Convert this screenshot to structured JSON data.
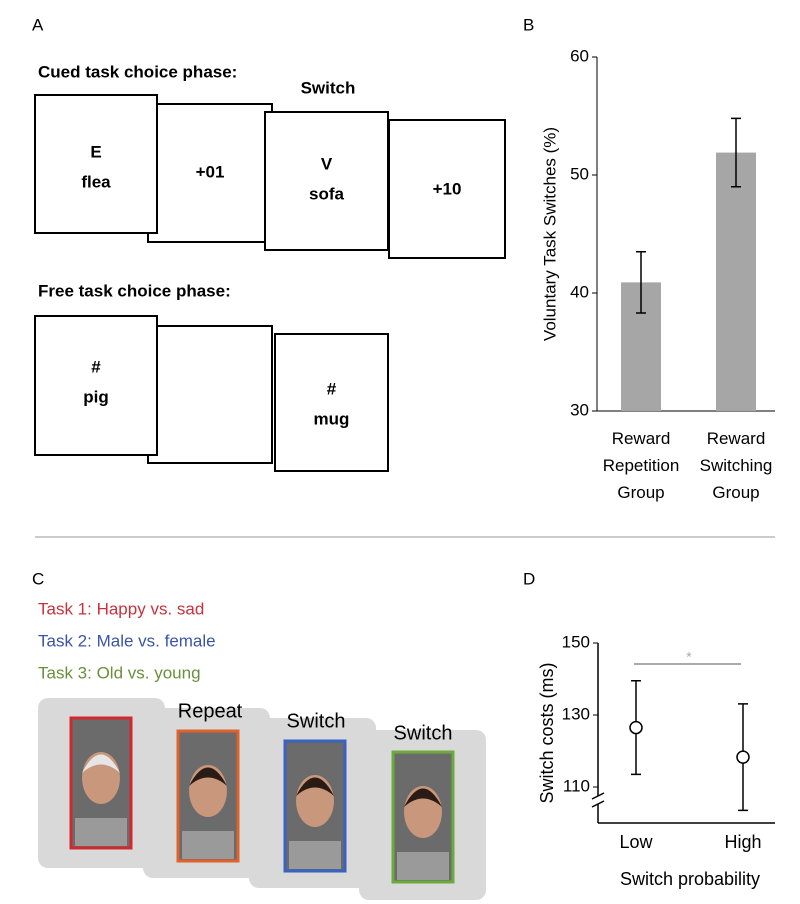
{
  "panel_labels": [
    "A",
    "B",
    "C",
    "D"
  ],
  "panel_a": {
    "cued_title": "Cued task choice phase:",
    "switch_label": "Switch",
    "cued_boxes": [
      [
        "E",
        "flea"
      ],
      [
        "+01"
      ],
      [
        "V",
        "sofa"
      ],
      [
        "+10"
      ]
    ],
    "free_title": "Free task choice phase:",
    "free_boxes": [
      [
        "#",
        "pig"
      ],
      [],
      [
        "#",
        "mug"
      ]
    ]
  },
  "panel_c": {
    "tasks": [
      {
        "text": "Task 1: Happy vs. sad",
        "color": "#c8323c"
      },
      {
        "text": "Task 2: Male vs. female",
        "color": "#3a55a8"
      },
      {
        "text": "Task 3: Old vs. young",
        "color": "#6a8f3c"
      }
    ],
    "trial_labels": [
      "Repeat",
      "Switch",
      "Switch"
    ],
    "frame_colors": [
      "#d0282e",
      "#e0622a",
      "#3a62c0",
      "#6aab3c"
    ]
  },
  "chart_data": [
    {
      "type": "bar",
      "y_label": "Voluntary Task Switches (%)",
      "categories": [
        "Reward Repetition Group",
        "Reward Switching Group"
      ],
      "values": [
        40.9,
        51.9
      ],
      "errors": [
        2.6,
        2.9
      ],
      "color": "#a6a6a6",
      "ylim": [
        30,
        60
      ],
      "yticks": [
        30,
        40,
        50,
        60
      ]
    },
    {
      "type": "errorpoint",
      "y_label": "Switch costs (ms)",
      "x_label": "Switch probability",
      "categories": [
        "Low",
        "High"
      ],
      "values": [
        126.5,
        118.3
      ],
      "errors": [
        13,
        14.8
      ],
      "annotation": "*",
      "ylim": [
        100,
        150
      ],
      "yticks": [
        110,
        130,
        150
      ]
    }
  ]
}
